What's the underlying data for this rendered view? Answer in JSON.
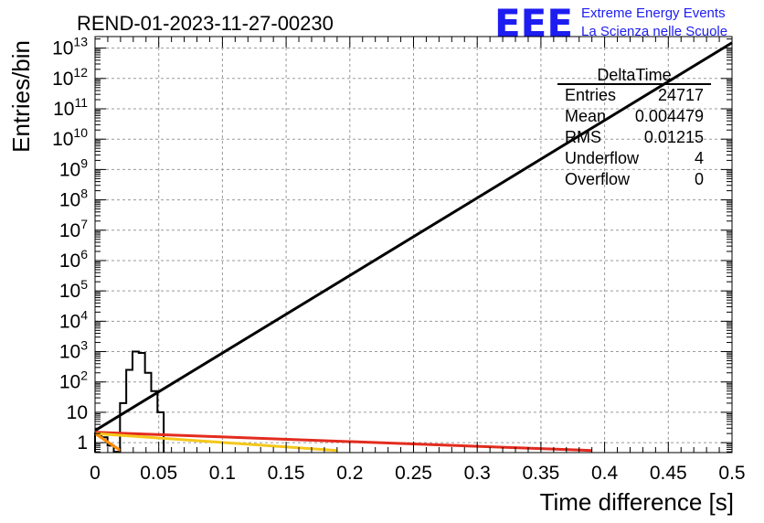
{
  "chart_data": {
    "type": "histogram",
    "title": "REND-01-2023-11-27-00230",
    "xlabel": "Time difference [s]",
    "ylabel": "Entries/bin",
    "xlim": [
      0,
      0.5
    ],
    "ylog": true,
    "grid": true,
    "x_ticks": [
      "0",
      "0.05",
      "0.1",
      "0.15",
      "0.2",
      "0.25",
      "0.3",
      "0.35",
      "0.4",
      "0.45",
      "0.5"
    ],
    "x_tick_values": [
      0,
      0.05,
      0.1,
      0.15,
      0.2,
      0.25,
      0.3,
      0.35,
      0.4,
      0.45,
      0.5
    ],
    "y_ticks": [
      {
        "v": 1,
        "base": "1",
        "exp": ""
      },
      {
        "v": 10,
        "base": "10",
        "exp": ""
      },
      {
        "v": 100,
        "base": "10",
        "exp": "2"
      },
      {
        "v": 1000,
        "base": "10",
        "exp": "3"
      },
      {
        "v": 10000,
        "base": "10",
        "exp": "4"
      },
      {
        "v": 100000,
        "base": "10",
        "exp": "5"
      },
      {
        "v": 1000000,
        "base": "10",
        "exp": "6"
      },
      {
        "v": 10000000,
        "base": "10",
        "exp": "7"
      },
      {
        "v": 100000000,
        "base": "10",
        "exp": "8"
      },
      {
        "v": 1000000000,
        "base": "10",
        "exp": "9"
      },
      {
        "v": 10000000000,
        "base": "10",
        "exp": "10"
      },
      {
        "v": 100000000000,
        "base": "10",
        "exp": "11"
      },
      {
        "v": 1000000000000,
        "base": "10",
        "exp": "12"
      },
      {
        "v": 10000000000000,
        "base": "10",
        "exp": "13"
      }
    ],
    "histogram": {
      "name": "DeltaTime",
      "bin_edges": [
        0,
        0.0049,
        0.0098,
        0.0147,
        0.0196,
        0.0245,
        0.0294,
        0.0343,
        0.0392,
        0.0441,
        0.049,
        0.0539
      ],
      "counts": [
        2,
        1.5,
        0.8,
        0.5,
        20,
        250,
        1000,
        900,
        200,
        50,
        10
      ]
    },
    "lines": [
      {
        "color": "#000000",
        "x": [
          0,
          0.5
        ],
        "y": [
          2.5,
          15000000000000
        ]
      },
      {
        "color": "#e32c1e",
        "x": [
          0,
          0.39
        ],
        "y": [
          2.2,
          0.55
        ]
      },
      {
        "color": "#f5c71a",
        "x": [
          0,
          0.19
        ],
        "y": [
          2.0,
          0.55
        ]
      },
      {
        "color": "#ff8c00",
        "x": [
          0,
          0.02
        ],
        "y": [
          2.0,
          0.55
        ]
      }
    ],
    "stats": {
      "title": "DeltaTime",
      "rows": [
        {
          "label": "Entries",
          "value": "24717"
        },
        {
          "label": "Mean",
          "value": "0.004479"
        },
        {
          "label": "RMS",
          "value": "0.01215"
        },
        {
          "label": "Underflow",
          "value": "4"
        },
        {
          "label": "Overflow",
          "value": "0"
        }
      ]
    }
  },
  "logo": {
    "text": "EEE",
    "line1": "Extreme Energy Events",
    "line2": "La Scienza nelle Scuole",
    "color": "#1d1df2"
  }
}
